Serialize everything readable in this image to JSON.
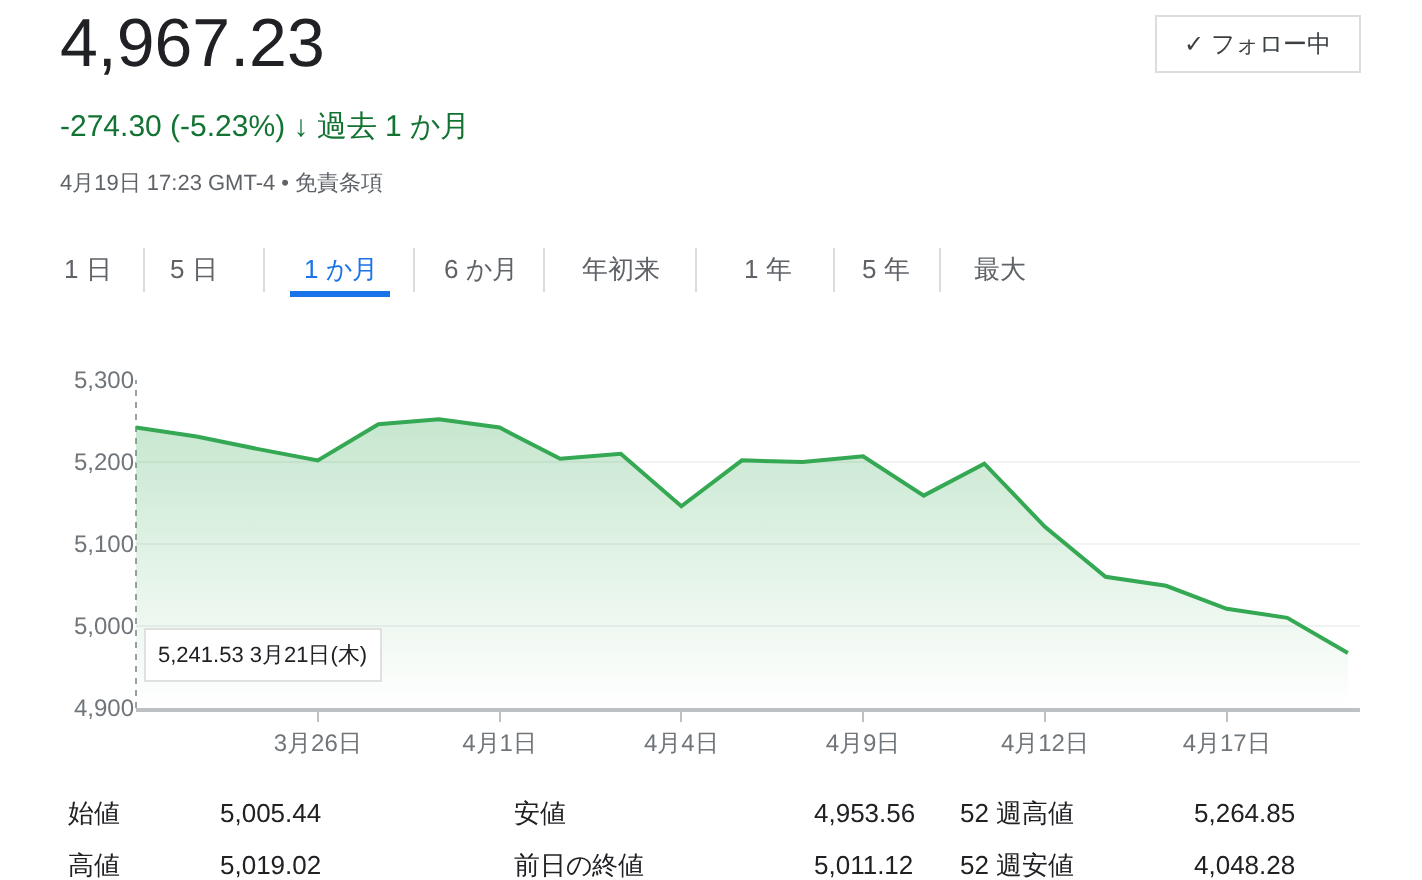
{
  "chart_data": {
    "type": "area",
    "title": "4,967.23",
    "subtitle": "-274.30 (-5.23%) ↓ 過去 1 か月",
    "categories": [
      null,
      null,
      null,
      "3月26日",
      null,
      null,
      "4月1日",
      null,
      null,
      "4月4日",
      null,
      null,
      "4月9日",
      null,
      null,
      "4月12日",
      null,
      null,
      "4月17日",
      null,
      null
    ],
    "series": [
      {
        "color": "#34a853",
        "values": [
          5242,
          5231,
          5216,
          5202,
          5246,
          5252,
          5242,
          5204,
          5210,
          5146,
          5202,
          5200,
          5207,
          5159,
          5198,
          5121,
          5060,
          5049,
          5021,
          5010,
          4967
        ]
      }
    ],
    "ylim": [
      4900,
      5300
    ],
    "yticks": [
      {
        "value": 4900,
        "label": "4,900"
      },
      {
        "value": 5000,
        "label": "5,000"
      },
      {
        "value": 5100,
        "label": "5,100"
      },
      {
        "value": 5200,
        "label": "5,200"
      },
      {
        "value": 5300,
        "label": "5,300"
      }
    ],
    "grid": "y",
    "marker": "none",
    "line_style": "solid",
    "annotations": [
      "4月19日 17:23 GMT-4 • 免責条項",
      "✓ フォロー中",
      "1 日",
      "5 日",
      "1 か月",
      "6 か月",
      "年初来",
      "1 年",
      "5 年",
      "最大",
      "始値",
      "5,005.44",
      "安値",
      "4,953.56",
      "52 週高値",
      "5,264.85",
      "高値",
      "5,019.02",
      "前日の終値",
      "5,011.12",
      "52 週安値",
      "4,048.28",
      "5,241.53 3月21日(木)"
    ]
  }
}
